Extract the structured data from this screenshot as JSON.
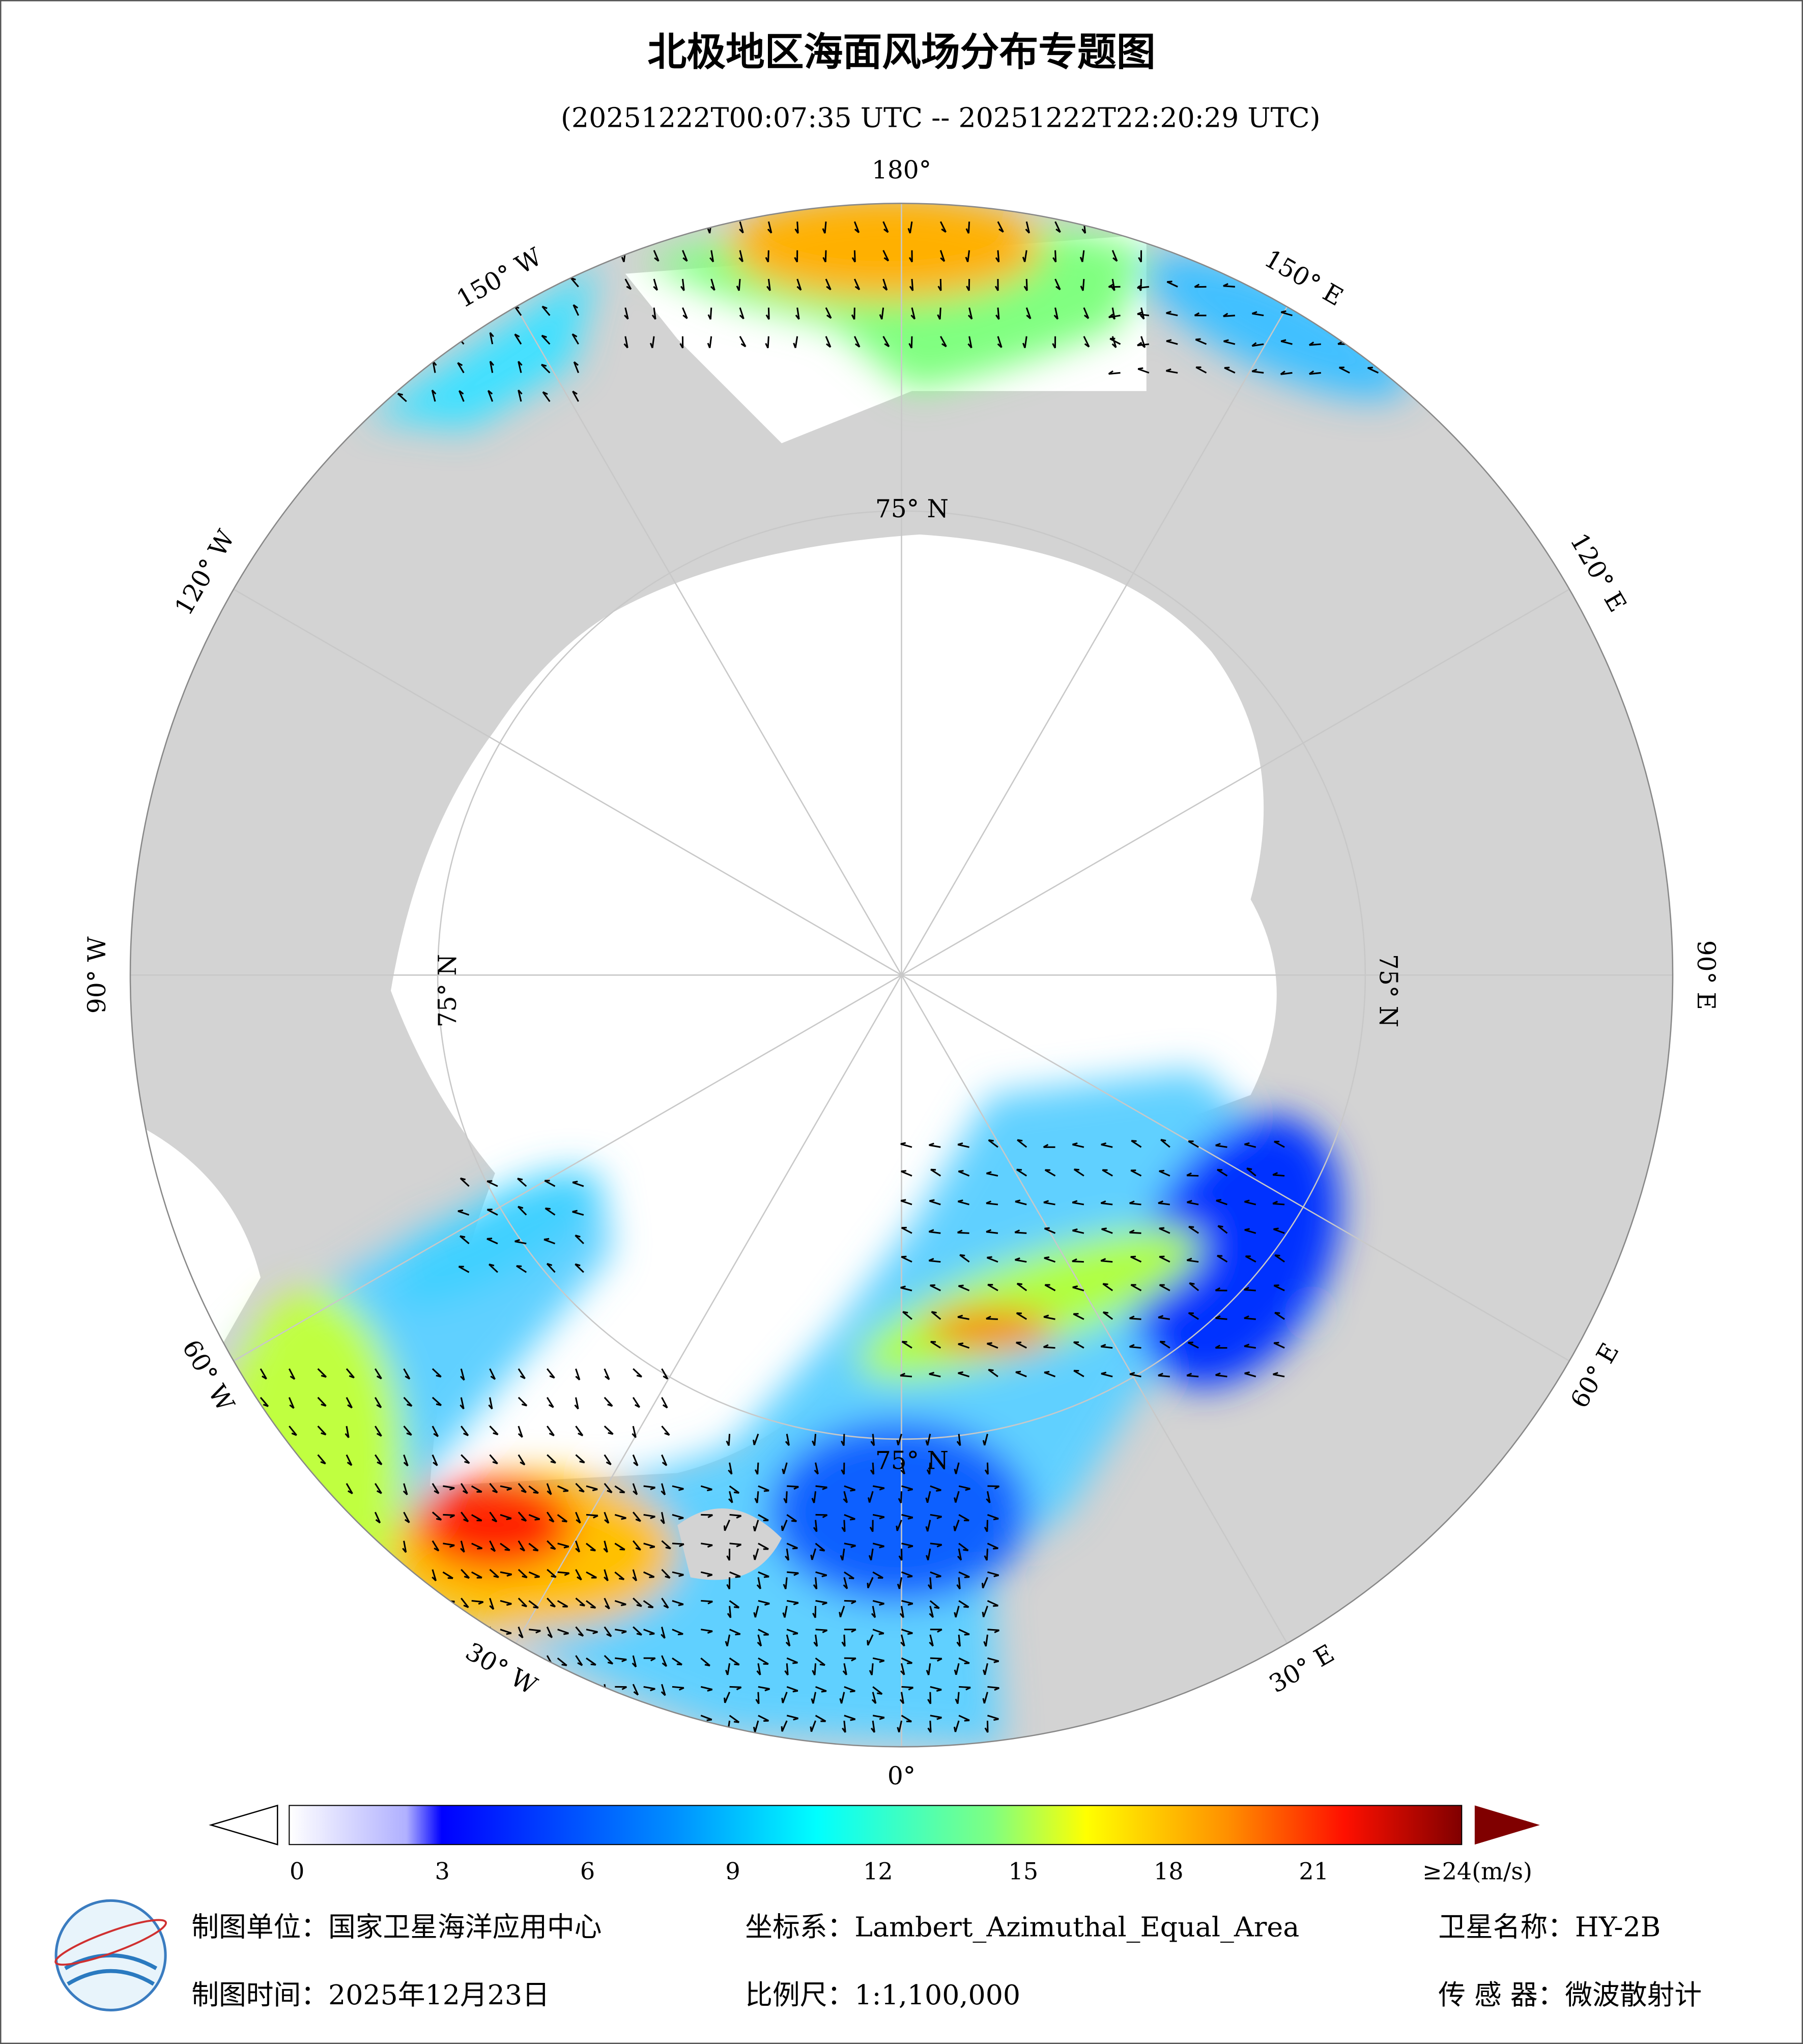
{
  "header": {
    "title": "北极地区海面风场分布专题图",
    "subtitle": "(20251222T00:07:35 UTC -- 20251222T22:20:29 UTC)"
  },
  "map": {
    "lon_labels": [
      "180°",
      "150° E",
      "120° E",
      "90° E",
      "60° E",
      "30° E",
      "0°",
      "30° W",
      "60° W",
      "90° W",
      "120° W",
      "150° W"
    ],
    "lat_label": "75° N"
  },
  "colorbar": {
    "range": [
      0,
      24
    ],
    "ticks": [
      0,
      3,
      6,
      9,
      12,
      15,
      18,
      21
    ],
    "max_label": "≥24(m/s)"
  },
  "footer": {
    "unit": "制图单位：国家卫星海洋应用中心",
    "crs": "坐标系：Lambert_Azimuthal_Equal_Area",
    "satellite": "卫星名称：HY-2B",
    "date": "制图时间：2025年12月23日",
    "scale": "比例尺：1:1,100,000",
    "sensor": "传 感 器：微波散射计"
  }
}
